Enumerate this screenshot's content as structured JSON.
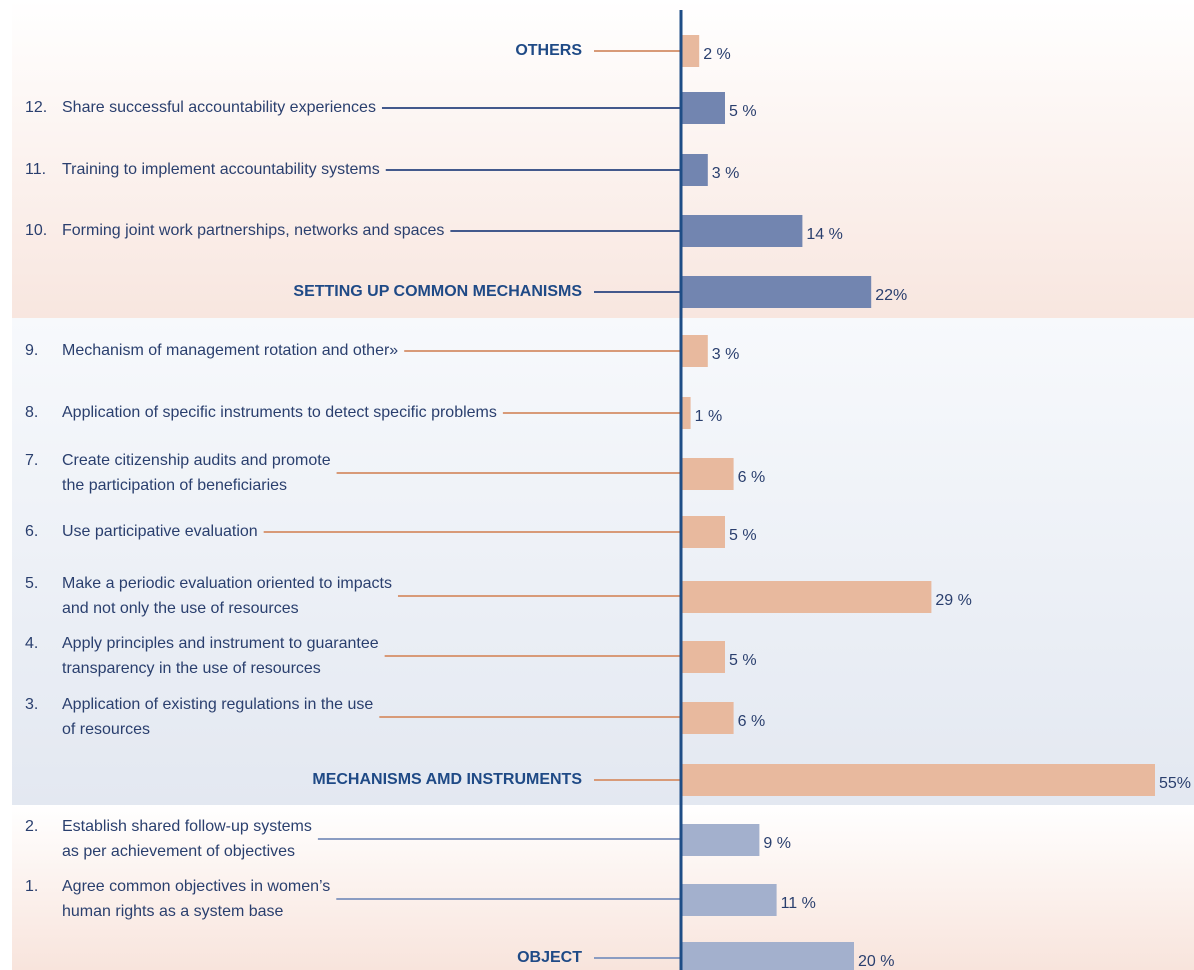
{
  "chart_data": {
    "type": "bar",
    "categories": [
      [
        "OTHERS"
      ],
      [
        "Share successful accountability experiences"
      ],
      [
        "Training to implement accountability systems"
      ],
      [
        "Forming joint work partnerships, networks and spaces"
      ],
      [
        "SETTING UP COMMON MECHANISMS"
      ],
      [
        "Mechanism of management rotation and other»"
      ],
      [
        "Application of specific instruments to detect specific problems"
      ],
      [
        "Create citizenship audits and promote",
        "the participation of beneficiaries"
      ],
      [
        "Use participative evaluation"
      ],
      [
        "Make a periodic evaluation oriented to impacts",
        "and not only the use of resources"
      ],
      [
        "Apply principles and instrument to guarantee",
        "transparency in the use of resources"
      ],
      [
        "Application of existing regulations in the use",
        "of resources"
      ],
      [
        "MECHANISMS AMD INSTRUMENTS"
      ],
      [
        "Establish shared follow-up systems",
        "as per achievement of objectives"
      ],
      [
        "Agree common objectives in women’s",
        "human rights as a system base"
      ],
      [
        "OBJECT"
      ]
    ],
    "numbers": [
      null,
      "12.",
      "11.",
      "10.",
      null,
      "9.",
      "8.",
      "7.",
      "6.",
      "5.",
      "4.",
      "3.",
      null,
      "2.",
      "1.",
      null
    ],
    "values": [
      2,
      5,
      3,
      14,
      22,
      3,
      1,
      6,
      5,
      29,
      5,
      6,
      55,
      9,
      11,
      20
    ],
    "value_labels": [
      "2 %",
      "5 %",
      "3 %",
      "14 %",
      "22%",
      "3 %",
      "1 %",
      "6 %",
      "5 %",
      "29 %",
      "5 %",
      "6 %",
      "55%",
      "9 %",
      "11 %",
      "20 %"
    ],
    "colors": [
      "#e8b99e",
      "#7285b0",
      "#7285b0",
      "#7285b0",
      "#7285b0",
      "#e8b99e",
      "#e8b99e",
      "#e8b99e",
      "#e8b99e",
      "#e8b99e",
      "#e8b99e",
      "#e8b99e",
      "#e8b99e",
      "#a3b0cd",
      "#a3b0cd",
      "#a3b0cd"
    ]
  }
}
